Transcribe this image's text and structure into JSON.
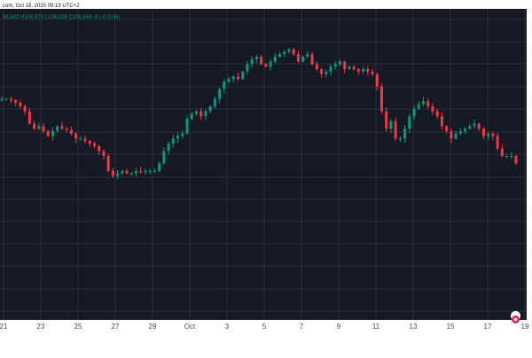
{
  "header": {
    "title": "com, Oct 18, 2025 09:19 UTC+2",
    "ohlc": "06,943  H106,970  L106,928  C106,944  -8 (-0.01%)"
  },
  "colors": {
    "up": "#089981",
    "down": "#f23645",
    "pane": "#151924",
    "logo": "#e91e63"
  },
  "chart_data": {
    "type": "candlestick",
    "title": "",
    "xlabel": "",
    "ylabel": "",
    "grid": true,
    "x_ticks": [
      "21",
      "23",
      "25",
      "27",
      "29",
      "Oct",
      "3",
      "5",
      "7",
      "9",
      "11",
      "13",
      "15",
      "17",
      "19"
    ],
    "y_range": [
      0,
      100
    ],
    "series": [
      {
        "values": [
          78,
          78,
          77.5,
          76.5,
          75,
          73,
          68,
          66,
          67,
          65,
          63,
          65,
          67,
          66,
          65.5,
          64,
          62,
          62,
          61,
          60,
          59,
          57,
          55,
          49,
          47,
          48,
          49,
          48,
          48,
          49,
          48.5,
          49,
          49,
          49,
          52,
          57,
          60,
          62,
          63,
          64,
          70,
          72,
          73,
          71,
          73,
          75,
          78,
          82,
          85,
          86,
          87,
          86,
          89,
          92,
          94,
          95,
          92,
          91,
          93,
          95,
          96,
          97,
          98,
          96,
          93,
          95,
          96,
          92,
          90,
          88,
          89,
          91,
          92,
          93,
          90,
          91,
          90,
          89,
          90,
          89,
          88,
          83,
          73,
          66,
          69,
          62,
          62,
          66,
          71,
          74,
          76,
          77,
          75,
          73,
          71,
          67,
          65,
          62,
          64,
          65,
          66,
          67,
          68,
          66,
          63,
          64,
          63,
          58,
          55,
          55,
          55,
          52
        ]
      }
    ]
  }
}
